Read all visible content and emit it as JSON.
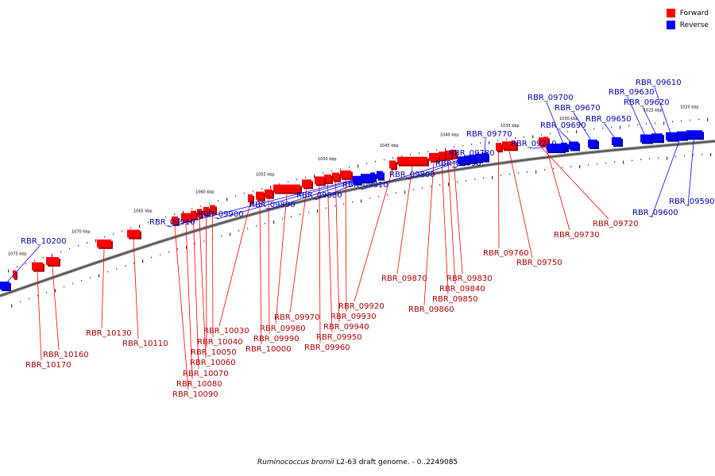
{
  "legend": {
    "forward_label": "Forward",
    "reverse_label": "Reverse",
    "forward_color": "#ff0000",
    "reverse_color": "#0000ff"
  },
  "caption": {
    "species": "Ruminococcus bromii",
    "rest": " L2-63 draft genome. - 0..2249085"
  },
  "axis": {
    "unit": "kbp",
    "ticks": [
      "1020 kbp",
      "1025 kbp",
      "1030 kbp",
      "1035 kbp",
      "1040 kbp",
      "1045 kbp",
      "1050 kbp",
      "1055 kbp",
      "1060 kbp",
      "1065 kbp",
      "1070 kbp",
      "1075 kbp"
    ]
  },
  "genes_forward": [
    "RBR_09720",
    "RBR_09730",
    "RBR_09750",
    "RBR_09760",
    "RBR_09830",
    "RBR_09840",
    "RBR_09850",
    "RBR_09860",
    "RBR_09870",
    "RBR_09920",
    "RBR_09930",
    "RBR_09940",
    "RBR_09950",
    "RBR_09960",
    "RBR_09970",
    "RBR_09980",
    "RBR_09990",
    "RBR_10000",
    "RBR_10030",
    "RBR_10040",
    "RBR_10050",
    "RBR_10060",
    "RBR_10070",
    "RBR_10080",
    "RBR_10090",
    "RBR_10110",
    "RBR_10130",
    "RBR_10160",
    "RBR_10170"
  ],
  "genes_reverse": [
    "RBR_09590",
    "RBR_09600",
    "RBR_09610",
    "RBR_09620",
    "RBR_09630",
    "RBR_09650",
    "RBR_09670",
    "RBR_09690",
    "RBR_09700",
    "RBR_09710",
    "RBR_09770",
    "RBR_09780",
    "RBR_09790",
    "RBR_09800",
    "RBR_09810",
    "RBR_09880",
    "RBR_09890",
    "RBR_09900",
    "RBR_09910",
    "RBR_10200"
  ]
}
